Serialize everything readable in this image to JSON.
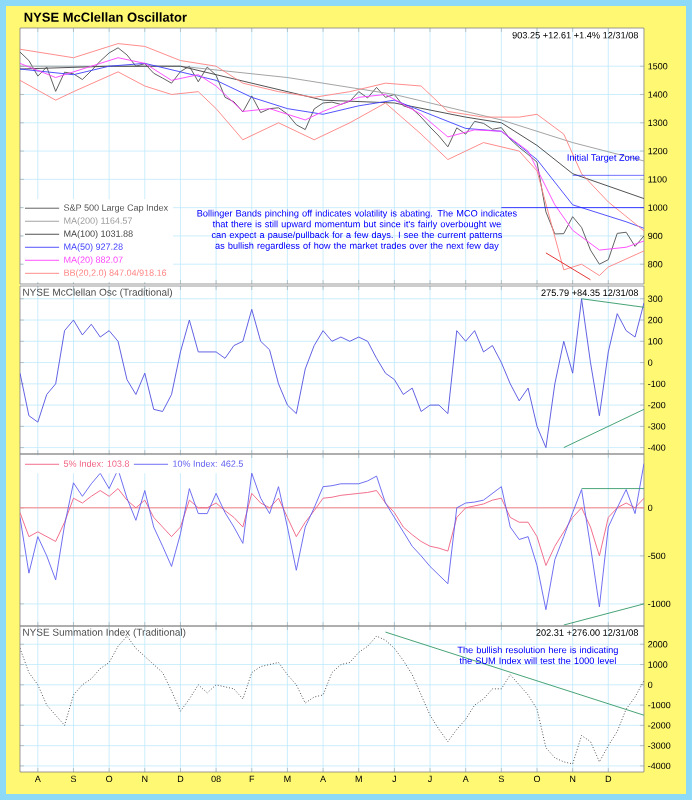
{
  "chart_data": [
    {
      "type": "line",
      "title": "NYSE McClellan Oscillator",
      "ylim": [
        730,
        1635
      ],
      "yticks": [
        800,
        900,
        1000,
        1100,
        1200,
        1300,
        1400,
        1500
      ],
      "grid": true,
      "legend": "bottom left",
      "tick_labels": "y",
      "categories": [
        null,
        null,
        null,
        null,
        null,
        null,
        null,
        null,
        null,
        null,
        null,
        null,
        null,
        null,
        null,
        null,
        null,
        null,
        null,
        null,
        null,
        null,
        null,
        null,
        null,
        null,
        null,
        null,
        null,
        null,
        null,
        null,
        null,
        null,
        null,
        null,
        null,
        null,
        null,
        null,
        null,
        null,
        null,
        null,
        null,
        null,
        null,
        null,
        null,
        null,
        null,
        null,
        null,
        null,
        null,
        null,
        null,
        null,
        null,
        null,
        null,
        null,
        null,
        null,
        null,
        null,
        null,
        null,
        null,
        null,
        null
      ],
      "annotations": [
        "903.25  +12.61  +1.4%  12/31/08",
        "Bollinger Bands pinching off indicates volatility is abating. The MCO indicates that there is still upward momentum but since it's fairly overbought we can expect a pause/pullback for a few days. I see the current patterns as bullish regardless of how the market trades over the next few day",
        "Initial Target Zone"
      ],
      "series": [
        {
          "name": "S&P 500 Large Cap Index",
          "color": "#505050",
          "values": [
            1550,
            1520,
            1465,
            1497,
            1411,
            1479,
            1473,
            1453,
            1484,
            1518,
            1547,
            1565,
            1540,
            1500,
            1509,
            1475,
            1458,
            1440,
            1481,
            1500,
            1445,
            1497,
            1468,
            1390,
            1374,
            1338,
            1395,
            1336,
            1350,
            1353,
            1331,
            1293,
            1276,
            1349,
            1370,
            1373,
            1365,
            1376,
            1410,
            1388,
            1425,
            1390,
            1400,
            1360,
            1350,
            1320,
            1285,
            1253,
            1215,
            1282,
            1260,
            1305,
            1298,
            1277,
            1283,
            1242,
            1213,
            1188,
            1161,
            985,
            907,
            908,
            968,
            930,
            850,
            800,
            816,
            909,
            913,
            863,
            900
          ]
        },
        {
          "name": "MA(200) 1164.57",
          "color": "#9a9a9a",
          "values": [
            1500,
            null,
            null,
            null,
            null,
            null,
            null,
            null,
            null,
            null,
            null,
            null,
            null,
            null,
            null,
            null,
            null,
            null,
            1500,
            null,
            null,
            null,
            null,
            null,
            null,
            null,
            null,
            null,
            null,
            null,
            1460,
            null,
            null,
            null,
            null,
            null,
            null,
            null,
            null,
            null,
            null,
            null,
            1400,
            null,
            null,
            null,
            null,
            null,
            null,
            null,
            null,
            null,
            null,
            null,
            1310,
            null,
            null,
            null,
            null,
            null,
            null,
            null,
            1230,
            null,
            null,
            null,
            null,
            null,
            null,
            null,
            1165
          ]
        },
        {
          "name": "MA(100) 1031.88",
          "color": "#404040",
          "values": [
            1490,
            null,
            null,
            null,
            null,
            null,
            null,
            null,
            null,
            null,
            1500,
            null,
            null,
            null,
            null,
            null,
            null,
            null,
            1500,
            null,
            null,
            null,
            null,
            null,
            null,
            null,
            1440,
            null,
            null,
            null,
            null,
            null,
            null,
            null,
            1380,
            null,
            null,
            null,
            null,
            null,
            null,
            null,
            1370,
            null,
            null,
            null,
            null,
            null,
            null,
            null,
            1320,
            null,
            null,
            null,
            1300,
            null,
            null,
            null,
            1220,
            null,
            null,
            null,
            1120,
            null,
            null,
            null,
            null,
            null,
            null,
            null,
            1032
          ]
        },
        {
          "name": "MA(50) 927.28",
          "color": "#4040ff",
          "values": [
            1490,
            null,
            null,
            null,
            null,
            null,
            1470,
            null,
            null,
            null,
            1500,
            null,
            null,
            null,
            1510,
            null,
            null,
            null,
            1480,
            null,
            null,
            null,
            1450,
            null,
            null,
            null,
            1390,
            null,
            null,
            null,
            1350,
            null,
            null,
            null,
            1330,
            null,
            null,
            null,
            1360,
            null,
            null,
            null,
            1380,
            null,
            null,
            null,
            1330,
            null,
            null,
            null,
            1280,
            null,
            null,
            null,
            1270,
            null,
            null,
            null,
            1170,
            null,
            null,
            null,
            1010,
            null,
            null,
            null,
            null,
            null,
            950,
            null,
            927
          ]
        },
        {
          "name": "MA(20) 882.07",
          "color": "#ff40ff",
          "values": [
            1510,
            null,
            null,
            null,
            1460,
            null,
            1480,
            null,
            null,
            null,
            null,
            1530,
            null,
            null,
            1510,
            null,
            null,
            1450,
            null,
            null,
            1470,
            null,
            1430,
            null,
            null,
            1340,
            null,
            null,
            1350,
            null,
            null,
            null,
            1310,
            null,
            1340,
            null,
            null,
            null,
            1390,
            null,
            null,
            1400,
            null,
            null,
            null,
            1330,
            null,
            null,
            1250,
            null,
            null,
            1275,
            null,
            null,
            1270,
            null,
            null,
            1200,
            null,
            null,
            1010,
            null,
            920,
            null,
            null,
            850,
            null,
            null,
            860,
            null,
            882
          ]
        },
        {
          "name": "BB(20,2.0) 847.04/918.16",
          "color": "#ff8080",
          "values": [
            1560,
            null,
            null,
            null,
            1540,
            null,
            1530,
            null,
            null,
            null,
            null,
            1580,
            null,
            null,
            1570,
            null,
            null,
            null,
            1520,
            null,
            null,
            null,
            1500,
            null,
            null,
            1440,
            null,
            null,
            null,
            1410,
            null,
            null,
            null,
            1390,
            null,
            null,
            null,
            1410,
            null,
            null,
            null,
            1440,
            null,
            null,
            null,
            1430,
            null,
            null,
            1340,
            null,
            null,
            null,
            1320,
            null,
            null,
            null,
            1320,
            null,
            1330,
            null,
            null,
            1260,
            null,
            1120,
            null,
            null,
            1020,
            null,
            null,
            null,
            918
          ]
        },
        {
          "color": "#ff8080",
          "values": [
            1450,
            null,
            null,
            null,
            1380,
            null,
            1410,
            null,
            null,
            null,
            null,
            1480,
            null,
            null,
            1430,
            null,
            null,
            1400,
            null,
            null,
            1410,
            null,
            1350,
            null,
            null,
            1240,
            null,
            null,
            null,
            1300,
            null,
            null,
            null,
            1240,
            null,
            null,
            null,
            1300,
            null,
            null,
            null,
            1370,
            null,
            null,
            null,
            1260,
            null,
            null,
            1170,
            null,
            null,
            null,
            1230,
            null,
            null,
            null,
            1200,
            null,
            1130,
            null,
            null,
            780,
            null,
            800,
            null,
            760,
            790,
            null,
            null,
            null,
            847
          ]
        },
        {
          "type": "line",
          "color": "#2020ff",
          "values": [
            null,
            null,
            null,
            null,
            null,
            null,
            null,
            null,
            null,
            null,
            null,
            null,
            null,
            null,
            null,
            null,
            null,
            null,
            null,
            null,
            null,
            null,
            null,
            null,
            null,
            null,
            null,
            null,
            null,
            null,
            null,
            null,
            null,
            null,
            null,
            null,
            null,
            null,
            null,
            null,
            null,
            null,
            null,
            null,
            null,
            null,
            null,
            null,
            null,
            null,
            null,
            null,
            null,
            null,
            null,
            null,
            null,
            null,
            null,
            null,
            null,
            null,
            1115,
            null,
            null,
            null,
            null,
            null,
            null,
            null,
            1115
          ]
        },
        {
          "type": "line",
          "color": "#2020ff",
          "values": [
            null,
            null,
            null,
            null,
            null,
            null,
            null,
            null,
            null,
            null,
            null,
            null,
            null,
            null,
            null,
            null,
            null,
            null,
            null,
            null,
            null,
            null,
            null,
            null,
            null,
            null,
            null,
            null,
            null,
            null,
            null,
            null,
            null,
            null,
            null,
            null,
            null,
            null,
            null,
            null,
            null,
            null,
            null,
            null,
            null,
            null,
            null,
            null,
            null,
            null,
            null,
            null,
            null,
            null,
            1000,
            null,
            null,
            null,
            null,
            null,
            null,
            null,
            null,
            null,
            null,
            null,
            null,
            null,
            null,
            null,
            1000
          ]
        },
        {
          "type": "line",
          "color": "#e02020",
          "values": [
            null,
            null,
            null,
            null,
            null,
            null,
            null,
            null,
            null,
            null,
            null,
            null,
            null,
            null,
            null,
            null,
            null,
            null,
            null,
            null,
            null,
            null,
            null,
            null,
            null,
            null,
            null,
            null,
            null,
            null,
            null,
            null,
            null,
            null,
            null,
            null,
            null,
            null,
            null,
            null,
            null,
            null,
            null,
            null,
            null,
            null,
            null,
            null,
            null,
            null,
            null,
            null,
            null,
            null,
            null,
            null,
            null,
            null,
            null,
            840,
            null,
            null,
            null,
            null,
            745,
            null,
            null,
            null,
            null,
            null,
            null
          ]
        }
      ]
    },
    {
      "type": "line",
      "title": "NYSE McClellan Osc (Traditional)",
      "ylim": [
        -430,
        360
      ],
      "yticks": [
        -400,
        -300,
        -200,
        -100,
        0,
        100,
        200,
        300
      ],
      "grid": true,
      "tick_labels": "y",
      "categories": [
        null,
        null,
        null,
        null,
        null,
        null,
        null,
        null,
        null,
        null,
        null,
        null,
        null,
        null,
        null,
        null,
        null,
        null,
        null,
        null,
        null,
        null,
        null,
        null,
        null,
        null,
        null,
        null,
        null,
        null,
        null,
        null,
        null,
        null,
        null,
        null,
        null,
        null,
        null,
        null,
        null,
        null,
        null,
        null,
        null,
        null,
        null,
        null,
        null,
        null,
        null,
        null,
        null,
        null,
        null,
        null,
        null,
        null,
        null,
        null,
        null,
        null,
        null,
        null,
        null,
        null,
        null,
        null,
        null,
        null,
        null
      ],
      "annotations": [
        "275.79  +84.35  12/31/08"
      ],
      "series": [
        {
          "color": "#5050e0",
          "values": [
            -50,
            -250,
            -280,
            -150,
            -100,
            150,
            200,
            130,
            180,
            120,
            150,
            100,
            -80,
            -150,
            -50,
            -220,
            -230,
            -150,
            50,
            200,
            50,
            50,
            50,
            20,
            80,
            100,
            250,
            100,
            60,
            -100,
            -200,
            -240,
            -30,
            80,
            150,
            100,
            120,
            100,
            120,
            100,
            20,
            -50,
            -80,
            -150,
            -120,
            -230,
            -200,
            -200,
            -240,
            150,
            100,
            150,
            50,
            80,
            0,
            -100,
            -180,
            -120,
            -300,
            -400,
            -100,
            100,
            -50,
            300,
            0,
            -250,
            50,
            230,
            150,
            120,
            280
          ]
        },
        {
          "type": "line",
          "color": "#339966",
          "values": [
            null,
            null,
            null,
            null,
            null,
            null,
            null,
            null,
            null,
            null,
            null,
            null,
            null,
            null,
            null,
            null,
            null,
            null,
            null,
            null,
            null,
            null,
            null,
            null,
            null,
            null,
            null,
            null,
            null,
            null,
            null,
            null,
            null,
            null,
            null,
            null,
            null,
            null,
            null,
            null,
            null,
            null,
            null,
            null,
            null,
            null,
            null,
            null,
            null,
            null,
            null,
            null,
            null,
            null,
            null,
            null,
            null,
            null,
            null,
            null,
            null,
            null,
            null,
            300,
            null,
            null,
            null,
            null,
            null,
            null,
            260
          ]
        },
        {
          "type": "line",
          "color": "#339966",
          "values": [
            null,
            null,
            null,
            null,
            null,
            null,
            null,
            null,
            null,
            null,
            null,
            null,
            null,
            null,
            null,
            null,
            null,
            null,
            null,
            null,
            null,
            null,
            null,
            null,
            null,
            null,
            null,
            null,
            null,
            null,
            null,
            null,
            null,
            null,
            null,
            null,
            null,
            null,
            null,
            null,
            null,
            null,
            null,
            null,
            null,
            null,
            null,
            null,
            null,
            null,
            null,
            null,
            null,
            null,
            null,
            null,
            null,
            null,
            null,
            null,
            null,
            -400,
            null,
            null,
            null,
            null,
            null,
            null,
            null,
            null,
            -220
          ]
        }
      ]
    },
    {
      "type": "line",
      "ylim": [
        -1230,
        560
      ],
      "yticks": [
        -1000,
        -500,
        0
      ],
      "grid": true,
      "legend": "top left",
      "tick_labels": "y",
      "categories": [
        null,
        null,
        null,
        null,
        null,
        null,
        null,
        null,
        null,
        null,
        null,
        null,
        null,
        null,
        null,
        null,
        null,
        null,
        null,
        null,
        null,
        null,
        null,
        null,
        null,
        null,
        null,
        null,
        null,
        null,
        null,
        null,
        null,
        null,
        null,
        null,
        null,
        null,
        null,
        null,
        null,
        null,
        null,
        null,
        null,
        null,
        null,
        null,
        null,
        null,
        null,
        null,
        null,
        null,
        null,
        null,
        null,
        null,
        null,
        null,
        null,
        null,
        null,
        null,
        null,
        null,
        null,
        null,
        null,
        null,
        null
      ],
      "ref_lines": [
        {
          "axis": "y",
          "value": 0,
          "color": "#ff8080"
        }
      ],
      "series": [
        {
          "name": "5% Index: 103.8",
          "color": "#f06080",
          "values": [
            -50,
            -300,
            -250,
            -300,
            -350,
            -150,
            100,
            50,
            120,
            180,
            120,
            200,
            80,
            0,
            80,
            -100,
            -200,
            -300,
            -200,
            80,
            0,
            0,
            50,
            -30,
            -100,
            -200,
            150,
            50,
            0,
            100,
            -100,
            -300,
            -150,
            -30,
            100,
            110,
            130,
            140,
            150,
            160,
            180,
            50,
            -50,
            -200,
            -280,
            -350,
            -400,
            -420,
            -450,
            -100,
            0,
            20,
            40,
            80,
            100,
            -100,
            -150,
            -150,
            -300,
            -600,
            -400,
            -250,
            -100,
            0,
            -200,
            -500,
            -100,
            0,
            50,
            0,
            100
          ]
        },
        {
          "name": "10% Index: 462.5",
          "color": "#6060f0",
          "values": [
            -100,
            -680,
            -300,
            -500,
            -750,
            -180,
            260,
            120,
            250,
            360,
            200,
            400,
            100,
            -130,
            180,
            -200,
            -400,
            -610,
            -270,
            200,
            -60,
            -60,
            150,
            -50,
            -200,
            -370,
            360,
            100,
            -60,
            220,
            -200,
            -650,
            -200,
            0,
            220,
            230,
            250,
            250,
            250,
            280,
            330,
            50,
            -100,
            -250,
            -400,
            -500,
            -610,
            -700,
            -790,
            0,
            50,
            60,
            80,
            150,
            220,
            -200,
            -330,
            -300,
            -600,
            -1060,
            -540,
            -300,
            -50,
            190,
            -400,
            -1030,
            -200,
            0,
            190,
            -60,
            460
          ]
        },
        {
          "type": "line",
          "color": "#339966",
          "values": [
            null,
            null,
            null,
            null,
            null,
            null,
            null,
            null,
            null,
            null,
            null,
            null,
            null,
            null,
            null,
            null,
            null,
            null,
            null,
            null,
            null,
            null,
            null,
            null,
            null,
            null,
            null,
            null,
            null,
            null,
            null,
            null,
            null,
            null,
            null,
            null,
            null,
            null,
            null,
            null,
            null,
            null,
            null,
            null,
            null,
            null,
            null,
            null,
            null,
            null,
            null,
            null,
            null,
            null,
            null,
            null,
            null,
            null,
            null,
            null,
            null,
            null,
            null,
            200,
            null,
            null,
            null,
            null,
            null,
            null,
            200
          ]
        },
        {
          "type": "line",
          "color": "#339966",
          "values": [
            null,
            null,
            null,
            null,
            null,
            null,
            null,
            null,
            null,
            null,
            null,
            null,
            null,
            null,
            null,
            null,
            null,
            null,
            null,
            null,
            null,
            null,
            null,
            null,
            null,
            null,
            null,
            null,
            null,
            null,
            null,
            null,
            null,
            null,
            null,
            null,
            null,
            null,
            null,
            null,
            null,
            null,
            null,
            null,
            null,
            null,
            null,
            null,
            null,
            null,
            null,
            null,
            null,
            null,
            null,
            null,
            null,
            null,
            null,
            null,
            null,
            -1220,
            null,
            null,
            null,
            null,
            null,
            null,
            null,
            null,
            -1000
          ]
        }
      ]
    },
    {
      "type": "line",
      "title": "NYSE Summation Index (Traditional)",
      "ylim": [
        -4300,
        2900
      ],
      "yticks": [
        -4000,
        -3000,
        -2000,
        -1000,
        0,
        1000,
        2000
      ],
      "grid": true,
      "categories": [
        null,
        null,
        "A",
        null,
        null,
        null,
        "S",
        null,
        null,
        null,
        "O",
        null,
        null,
        null,
        "N",
        null,
        null,
        null,
        "D",
        null,
        null,
        null,
        "08",
        null,
        null,
        null,
        "F",
        null,
        null,
        null,
        "M",
        null,
        null,
        null,
        "A",
        null,
        null,
        null,
        "M",
        null,
        null,
        null,
        "J",
        null,
        null,
        null,
        "J",
        null,
        null,
        null,
        "A",
        null,
        null,
        null,
        "S",
        null,
        null,
        null,
        "O",
        null,
        null,
        null,
        "N",
        null,
        null,
        null,
        "D",
        null,
        null,
        null,
        null
      ],
      "annotations": [
        "202.31  +276.00  12/31/08",
        "The bullish resolution here is indicating the SUM Index will test the 1000  level"
      ],
      "series": [
        {
          "color": "#303030",
          "line_style": "dotted",
          "values": [
            1800,
            600,
            0,
            -1000,
            -1500,
            -2000,
            -500,
            0,
            300,
            800,
            1100,
            1900,
            2400,
            1800,
            1400,
            1000,
            600,
            -300,
            -1300,
            -700,
            0,
            -400,
            0,
            -100,
            -200,
            -700,
            600,
            900,
            1000,
            1100,
            500,
            0,
            -900,
            -600,
            -500,
            600,
            1000,
            1100,
            1600,
            1900,
            2400,
            2200,
            1800,
            1200,
            500,
            -500,
            -1500,
            -2200,
            -2800,
            -2200,
            -1700,
            -1000,
            -700,
            -200,
            -200,
            500,
            0,
            -500,
            -1200,
            -3100,
            -3600,
            -3800,
            -3900,
            -2500,
            -2800,
            -3800,
            -3000,
            -2300,
            -1200,
            -600,
            200
          ]
        },
        {
          "type": "line",
          "color": "#339966",
          "values": [
            null,
            null,
            null,
            null,
            null,
            null,
            null,
            null,
            null,
            null,
            null,
            null,
            null,
            null,
            null,
            null,
            null,
            null,
            null,
            null,
            null,
            null,
            null,
            null,
            null,
            null,
            null,
            null,
            null,
            null,
            null,
            null,
            null,
            null,
            null,
            null,
            null,
            null,
            null,
            null,
            null,
            2600,
            null,
            null,
            null,
            null,
            null,
            null,
            null,
            null,
            null,
            null,
            null,
            null,
            null,
            null,
            null,
            null,
            null,
            null,
            null,
            null,
            null,
            null,
            null,
            null,
            null,
            null,
            null,
            null,
            -1500
          ]
        }
      ]
    }
  ]
}
